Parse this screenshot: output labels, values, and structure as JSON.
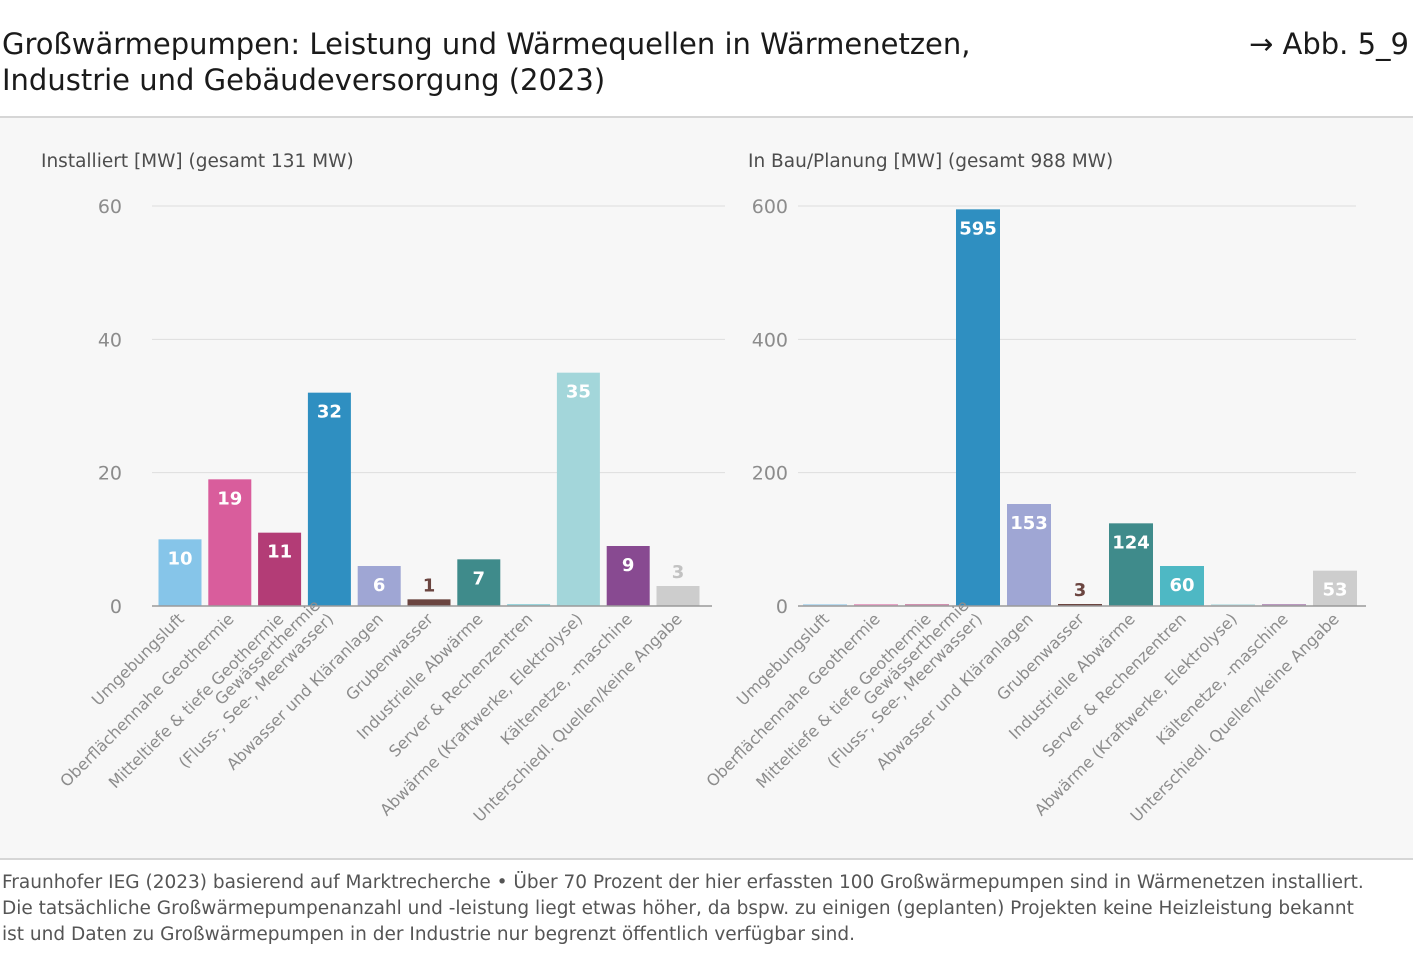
{
  "header": {
    "title": "Großwärmepumpen: Leistung und Wärmequellen in Wärmenetzen,\nIndustrie und Gebäudeversorgung (2023)",
    "figure_ref": "→ Abb. 5_9"
  },
  "footer": {
    "line1": "Fraunhofer IEG (2023) basierend auf Marktrecherche • Über 70 Prozent der hier erfassten 100 Großwärmepumpen sind in Wärmenetzen installiert.",
    "line2": "Die tatsächliche Großwärmepumpenanzahl und -leistung liegt etwas höher, da bspw. zu einigen (geplanten) Projekten keine Heizleistung bekannt",
    "line3": "ist und Daten zu Großwärmepumpen in der Industrie nur begrenzt öffentlich verfügbar sind."
  },
  "colors": {
    "Umgebungsluft": "#86c5e9",
    "Oberflächennahe Geothermie": "#d95d9c",
    "Mitteltiefe & tiefe Geothermie": "#b33c76",
    "Gewässerthermie (Fluss-, See-, Meerwasser)": "#2f8fc1",
    "Abwasser und Kläranlagen": "#9fa6d4",
    "Grubenwasser": "#6b4540",
    "Industrielle Abwärme": "#3f8b8b",
    "Server & Rechenzentren": "#4eb8c4",
    "Abwärme (Kraftwerke, Elektrolyse)": "#a3d6da",
    "Kältenetze, -maschine": "#884a91",
    "Unterschiedl. Quellen/keine Angabe": "#cdcdcd"
  },
  "chart_data": [
    {
      "type": "bar",
      "title": "Installiert [MW] (gesamt 131 MW)",
      "categories": [
        "Umgebungsluft",
        "Oberflächennahe Geothermie",
        "Mitteltiefe & tiefe Geothermie",
        "Gewässerthermie (Fluss-, See-, Meerwasser)",
        "Abwasser und Kläranlagen",
        "Grubenwasser",
        "Industrielle Abwärme",
        "Server & Rechenzentren",
        "Abwärme (Kraftwerke, Elektrolyse)",
        "Kältenetze, -maschine",
        "Unterschiedl. Quellen/keine Angabe"
      ],
      "category_labels": [
        [
          "Umgebungsluft"
        ],
        [
          "Oberflächennahe Geothermie"
        ],
        [
          "Mitteltiefe & tiefe Geothermie"
        ],
        [
          "Gewässerthermie",
          "(Fluss-, See-, Meerwasser)"
        ],
        [
          "Abwasser und Kläranlagen"
        ],
        [
          "Grubenwasser"
        ],
        [
          "Industrielle Abwärme"
        ],
        [
          "Server & Rechenzentren"
        ],
        [
          "Abwärme (Kraftwerke, Elektrolyse)"
        ],
        [
          "Kältenetze, -maschine"
        ],
        [
          "Unterschiedl. Quellen/keine Angabe"
        ]
      ],
      "values": [
        10,
        19,
        11,
        32,
        6,
        1,
        7,
        0,
        35,
        9,
        3
      ],
      "labels": [
        "10",
        "19",
        "11",
        "32",
        "6",
        "1",
        "7",
        "",
        "35",
        "9",
        "3"
      ],
      "ylim": [
        0,
        60
      ],
      "yticks": [
        0,
        20,
        40,
        60
      ],
      "grid": true
    },
    {
      "type": "bar",
      "title": "In Bau/Planung [MW] (gesamt 988 MW)",
      "categories": [
        "Umgebungsluft",
        "Oberflächennahe Geothermie",
        "Mitteltiefe & tiefe Geothermie",
        "Gewässerthermie (Fluss-, See-, Meerwasser)",
        "Abwasser und Kläranlagen",
        "Grubenwasser",
        "Industrielle Abwärme",
        "Server & Rechenzentren",
        "Abwärme (Kraftwerke, Elektrolyse)",
        "Kältenetze, -maschine",
        "Unterschiedl. Quellen/keine Angabe"
      ],
      "category_labels": [
        [
          "Umgebungsluft"
        ],
        [
          "Oberflächennahe Geothermie"
        ],
        [
          "Mitteltiefe & tiefe Geothermie"
        ],
        [
          "Gewässerthermie",
          "(Fluss-, See-, Meerwasser)"
        ],
        [
          "Abwasser und Kläranlagen"
        ],
        [
          "Grubenwasser"
        ],
        [
          "Industrielle Abwärme"
        ],
        [
          "Server & Rechenzentren"
        ],
        [
          "Abwärme (Kraftwerke, Elektrolyse)"
        ],
        [
          "Kältenetze, -maschine"
        ],
        [
          "Unterschiedl. Quellen/keine Angabe"
        ]
      ],
      "values": [
        0,
        0,
        0,
        595,
        153,
        3,
        124,
        60,
        0,
        0,
        53
      ],
      "labels": [
        "",
        "",
        "",
        "595",
        "153",
        "3",
        "124",
        "60",
        "",
        "",
        "53"
      ],
      "ylim": [
        0,
        600
      ],
      "yticks": [
        0,
        200,
        400,
        600
      ],
      "grid": true
    }
  ]
}
